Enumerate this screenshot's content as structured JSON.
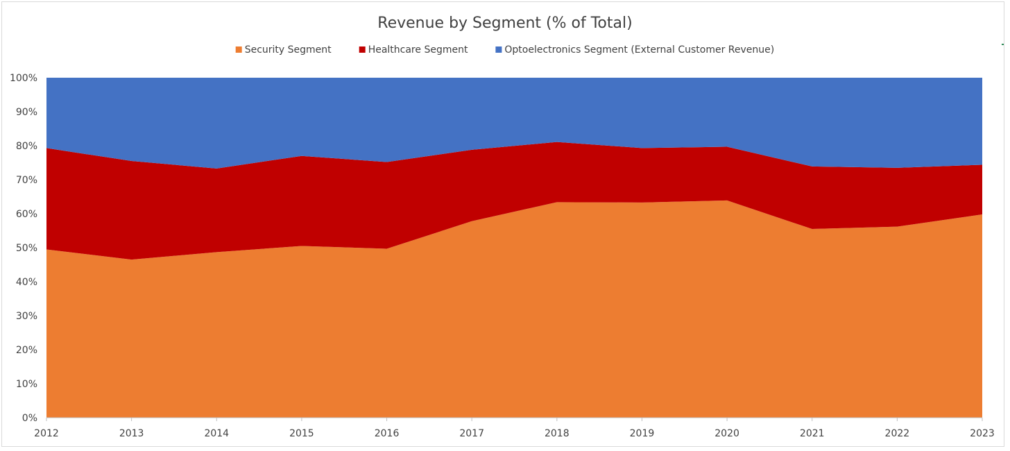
{
  "chart_data": {
    "type": "area",
    "stacked": true,
    "title": "Revenue by Segment (% of Total)",
    "x": [
      "2012",
      "2013",
      "2014",
      "2015",
      "2016",
      "2017",
      "2018",
      "2019",
      "2020",
      "2021",
      "2022",
      "2023"
    ],
    "series": [
      {
        "name": "Security Segment",
        "color": "#ed7d31",
        "values": [
          49.5,
          46.5,
          48.7,
          50.5,
          49.7,
          57.8,
          63.4,
          63.3,
          63.9,
          55.5,
          56.2,
          59.8
        ]
      },
      {
        "name": "Healthcare Segment",
        "color": "#c00000",
        "values": [
          29.8,
          29.0,
          24.6,
          26.5,
          25.5,
          21.0,
          17.7,
          16.0,
          15.8,
          18.4,
          17.3,
          14.6
        ]
      },
      {
        "name": "Optoelectronics Segment (External Customer Revenue)",
        "color": "#4472c4",
        "values": [
          20.7,
          24.5,
          26.7,
          23.0,
          24.8,
          21.2,
          18.9,
          20.7,
          20.3,
          26.1,
          26.5,
          25.6
        ]
      }
    ],
    "ylim": [
      0,
      100
    ],
    "y_ticks": [
      "0%",
      "10%",
      "20%",
      "30%",
      "40%",
      "50%",
      "60%",
      "70%",
      "80%",
      "90%",
      "100%"
    ],
    "legend_position": "top-center",
    "grid": false
  }
}
